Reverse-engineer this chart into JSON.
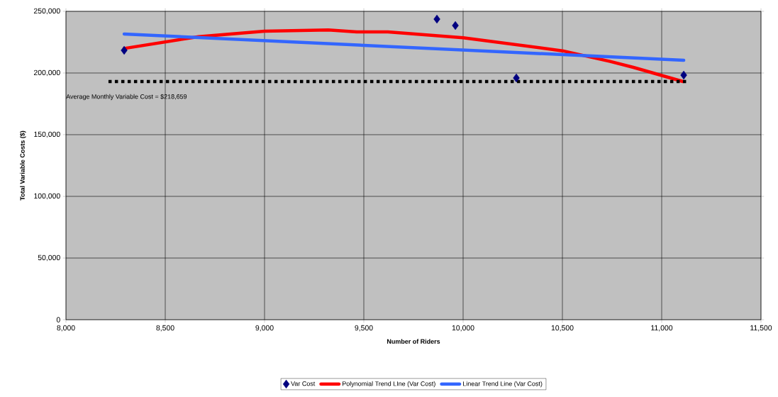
{
  "chart_data": {
    "type": "scatter",
    "xlabel": "Number of Riders",
    "ylabel": "Total Variable Costs ($)",
    "annotations": [
      "Average Monthly Variable Cost = $218,659"
    ],
    "xlim": [
      8000,
      11500
    ],
    "ylim": [
      0,
      250000
    ],
    "xticks": [
      {
        "value": 8000,
        "label": "8,000"
      },
      {
        "value": 8500,
        "label": "8,500"
      },
      {
        "value": 9000,
        "label": "9,000"
      },
      {
        "value": 9500,
        "label": "9,500"
      },
      {
        "value": 10000,
        "label": "10,000"
      },
      {
        "value": 10500,
        "label": "10,500"
      },
      {
        "value": 11000,
        "label": "11,000"
      },
      {
        "value": 11500,
        "label": "11,500"
      }
    ],
    "yticks": [
      0,
      {
        "value": 50000,
        "label": "50,000"
      },
      {
        "value": 100000,
        "label": "100,000"
      },
      {
        "value": 150000,
        "label": "150,000"
      },
      {
        "value": 200000,
        "label": "200,000"
      },
      {
        "value": 250000,
        "label": "250,000"
      }
    ],
    "grid": true,
    "legend": "bottom",
    "series": [
      {
        "name": "Var Cost",
        "marker": "diamond",
        "color": "#000080",
        "x": [
          8293,
          9868,
          9961,
          10268,
          11111
        ],
        "values": [
          218400,
          243700,
          238500,
          196000,
          198300
        ]
      },
      {
        "name": "Polynomial Trend LIne (Var Cost)",
        "type": "line",
        "marker": "none",
        "line_style": "solid",
        "color": "#ff0000",
        "x": [
          8293,
          8668,
          9000,
          9321,
          9464,
          9621,
          10000,
          10500,
          10740,
          10857,
          11107
        ],
        "values": [
          219900,
          229500,
          233900,
          234900,
          233300,
          233300,
          228600,
          218000,
          209400,
          204600,
          193100
        ]
      },
      {
        "name": "Linear Trend Line (Var Cost)",
        "type": "line",
        "marker": "none",
        "line_style": "solid",
        "color": "#3366ff",
        "x": [
          8293,
          11111
        ],
        "values": [
          231600,
          210300
        ]
      },
      {
        "type": "line",
        "marker": "none",
        "line_style": "dotted",
        "color": "#000000",
        "x": [
          8214,
          11132
        ],
        "values": [
          193100,
          193100
        ]
      }
    ]
  }
}
